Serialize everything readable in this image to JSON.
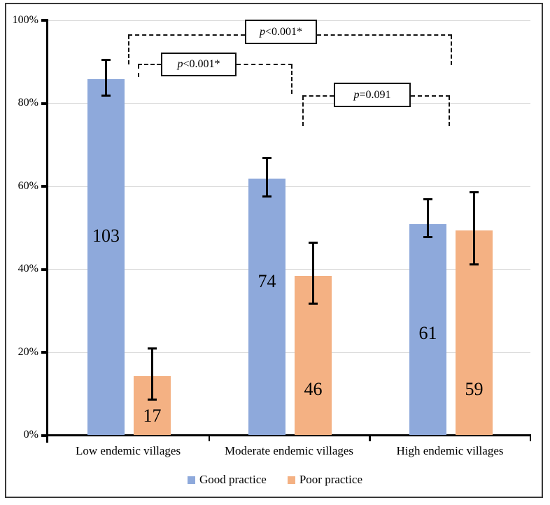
{
  "chart_data": {
    "type": "bar",
    "title": "",
    "xlabel": "",
    "ylabel": "",
    "categories": [
      "Low endemic villages",
      "Moderate endemic villages",
      "High endemic villages"
    ],
    "series": [
      {
        "name": "Good practice",
        "color": "#8EA9DB",
        "values_pct": [
          85.8,
          61.7,
          50.8
        ],
        "counts": [
          "103",
          "74",
          "61"
        ],
        "err_low_pct": [
          81.9,
          57.5,
          47.7
        ],
        "err_high_pct": [
          90.4,
          66.8,
          56.8
        ],
        "count_label_pct": [
          48,
          37,
          24.5
        ]
      },
      {
        "name": "Poor practice",
        "color": "#F4B183",
        "values_pct": [
          14.2,
          38.3,
          49.2
        ],
        "counts": [
          "17",
          "46",
          "59"
        ],
        "err_low_pct": [
          8.6,
          31.7,
          41.1
        ],
        "err_high_pct": [
          20.9,
          46.4,
          58.5
        ],
        "count_label_pct": [
          4.5,
          11,
          11
        ]
      }
    ],
    "ylim": [
      0,
      100
    ],
    "yticks": [
      {
        "label": "0%",
        "pct": 0
      },
      {
        "label": "20%",
        "pct": 20
      },
      {
        "label": "40%",
        "pct": 40
      },
      {
        "label": "60%",
        "pct": 60
      },
      {
        "label": "80%",
        "pct": 80
      },
      {
        "label": "100%",
        "pct": 100
      }
    ],
    "grid": true,
    "legend_position": "bottom",
    "annotations": [
      {
        "label": "p<0.001*",
        "comparison": "Low vs High endemic villages",
        "box": {
          "x": 350,
          "y": 28,
          "w": 103,
          "h": 35
        },
        "line_y": 50,
        "left_x": 183,
        "right_x": 644,
        "left_drop_y": 92,
        "right_drop_y": 93
      },
      {
        "label": "p<0.001*",
        "comparison": "Low vs Moderate endemic villages",
        "box": {
          "x": 230,
          "y": 75,
          "w": 108,
          "h": 34
        },
        "line_y": 92,
        "left_x": 197,
        "right_x": 416,
        "left_drop_y": 110,
        "right_drop_y": 134
      },
      {
        "label": "p=0.091",
        "comparison": "Moderate vs High endemic villages",
        "box": {
          "x": 477,
          "y": 118,
          "w": 110,
          "h": 35
        },
        "line_y": 137,
        "left_x": 432,
        "right_x": 641,
        "left_drop_y": 180,
        "right_drop_y": 180
      }
    ],
    "colors": {
      "grid": "#d9d9d9",
      "axis": "#000000",
      "annotation": "#111111",
      "frame": "#383838",
      "text": "#000000"
    }
  }
}
